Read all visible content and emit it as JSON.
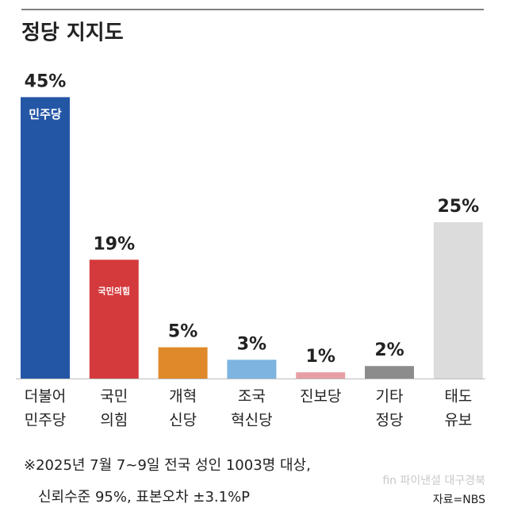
{
  "chart_data": {
    "type": "bar",
    "title": "정당 지지도",
    "categories": [
      [
        "더불어",
        "민주당"
      ],
      [
        "국민",
        "의힘"
      ],
      [
        "개혁",
        "신당"
      ],
      [
        "조국",
        "혁신당"
      ],
      [
        "진보당"
      ],
      [
        "기타",
        "정당"
      ],
      [
        "태도",
        "유보"
      ]
    ],
    "values": [
      45,
      19,
      5,
      3,
      1,
      2,
      25
    ],
    "value_labels": [
      "45%",
      "19%",
      "5%",
      "3%",
      "1%",
      "2%",
      "25%"
    ],
    "colors": [
      "#2456a6",
      "#d43a3c",
      "#e0892a",
      "#7db4e0",
      "#e6a0a5",
      "#8c8c8c",
      "#dcdcdc"
    ],
    "logos": [
      "민주당",
      "국민의힘"
    ],
    "notes": [
      "※2025년 7월 7~9일 전국 성인 1003명 대상,",
      "신뢰수준 95%, 표본오차 ±3.1%P"
    ],
    "source": "자료=NBS",
    "watermark": "fin 파이낸셜 대구경북"
  }
}
